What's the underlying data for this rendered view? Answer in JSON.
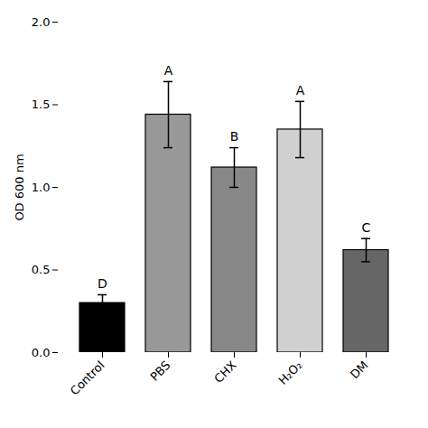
{
  "chart_data": {
    "type": "bar",
    "categories": [
      "Control",
      "PBS",
      "CHX",
      "H₂O₂",
      "DM"
    ],
    "values": [
      0.3,
      1.44,
      1.12,
      1.35,
      0.62
    ],
    "errors": [
      0.05,
      0.2,
      0.12,
      0.17,
      0.07
    ],
    "colors": [
      "#000000",
      "#999999",
      "#888888",
      "#d0d0d0",
      "#666666"
    ],
    "annotations": [
      "D",
      "A",
      "B",
      "A",
      "C"
    ],
    "ylabel": "OD 600 nm",
    "ylim": [
      0.0,
      2.0
    ],
    "yticks": [
      {
        "value": 0.0,
        "label": "0.0"
      },
      {
        "value": 0.5,
        "label": "0.5"
      },
      {
        "value": 1.0,
        "label": "1.0"
      },
      {
        "value": 1.5,
        "label": "1.5"
      },
      {
        "value": 2.0,
        "label": "2.0"
      }
    ],
    "grid": false
  }
}
